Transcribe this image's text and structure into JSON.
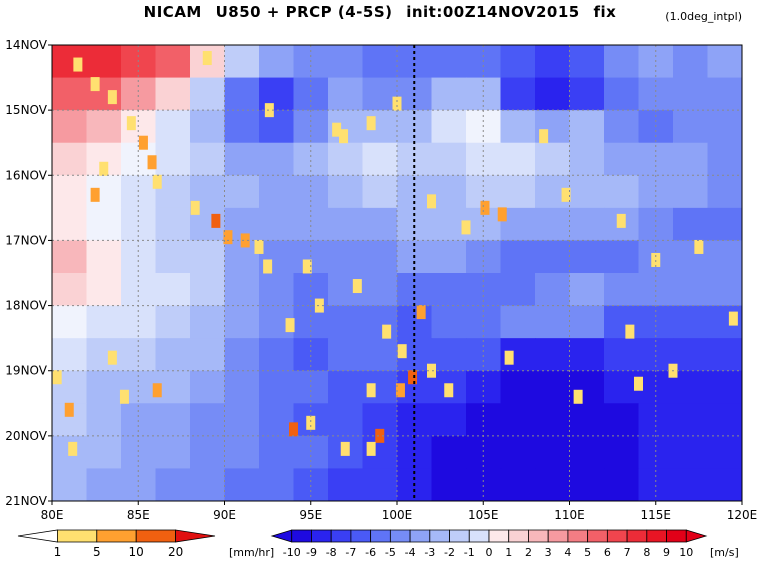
{
  "title": {
    "model": "NICAM",
    "fields": "U850 + PRCP (4-5S)",
    "init": "init:00Z14NOV2015",
    "mode": "fix"
  },
  "note": "(1.0deg_intpl)",
  "chart_data": {
    "type": "heatmap",
    "title": "NICAM  U850 + PRCP (4-5S) init:00Z14NOV2015 fix",
    "x_axis": {
      "label": "",
      "range": [
        80,
        120
      ],
      "ticks": [
        80,
        85,
        90,
        95,
        100,
        105,
        110,
        115,
        120
      ],
      "tick_labels": [
        "80E",
        "85E",
        "90E",
        "95E",
        "100E",
        "105E",
        "110E",
        "115E",
        "120E"
      ]
    },
    "y_axis": {
      "label": "",
      "range_days_from_top": [
        0,
        7
      ],
      "ticks": [
        0,
        1,
        2,
        3,
        4,
        5,
        6,
        7
      ],
      "tick_labels": [
        "14NOV",
        "15NOV",
        "16NOV",
        "17NOV",
        "18NOV",
        "19NOV",
        "20NOV",
        "21NOV"
      ],
      "direction": "time increases downward"
    },
    "grid": true,
    "reference_line": {
      "x": 101,
      "style": "dotted"
    },
    "u850_field": {
      "units": "[m/s]",
      "description": "zonal wind at 850 hPa, shaded",
      "rows": [
        [
          8,
          8,
          7,
          6,
          2,
          -2,
          -4,
          -5,
          -5,
          -6,
          -6,
          -6,
          -6,
          -7,
          -8,
          -7,
          -5,
          -4,
          -5,
          -4
        ],
        [
          6,
          6,
          4,
          2,
          -2,
          -6,
          -8,
          -6,
          -4,
          -5,
          -5,
          -3,
          -3,
          -8,
          -9,
          -8,
          -6,
          -5,
          -5,
          -5
        ],
        [
          4,
          3,
          1,
          -1,
          -3,
          -6,
          -7,
          -5,
          -3,
          -3,
          -3,
          -1,
          0,
          -3,
          -4,
          -3,
          -5,
          -6,
          -5,
          -5
        ],
        [
          2,
          1,
          0,
          -1,
          -2,
          -4,
          -4,
          -3,
          -2,
          -1,
          -2,
          -2,
          -1,
          -1,
          -2,
          -3,
          -4,
          -4,
          -4,
          -5
        ],
        [
          1,
          0,
          -1,
          -2,
          -3,
          -3,
          -4,
          -4,
          -3,
          -2,
          -3,
          -3,
          -2,
          -2,
          -3,
          -3,
          -3,
          -4,
          -4,
          -5
        ],
        [
          1,
          0,
          -1,
          -2,
          -3,
          -4,
          -4,
          -4,
          -4,
          -4,
          -3,
          -3,
          -3,
          -4,
          -4,
          -4,
          -4,
          -5,
          -6,
          -6
        ],
        [
          3,
          1,
          -1,
          -2,
          -2,
          -4,
          -5,
          -5,
          -5,
          -5,
          -4,
          -4,
          -5,
          -6,
          -6,
          -6,
          -6,
          -5,
          -5,
          -5
        ],
        [
          2,
          1,
          -1,
          -1,
          -2,
          -4,
          -5,
          -6,
          -5,
          -5,
          -6,
          -6,
          -6,
          -6,
          -5,
          -4,
          -5,
          -5,
          -5,
          -5
        ],
        [
          0,
          -1,
          -1,
          -2,
          -3,
          -4,
          -5,
          -6,
          -6,
          -6,
          -7,
          -6,
          -6,
          -5,
          -5,
          -5,
          -7,
          -7,
          -7,
          -7
        ],
        [
          -1,
          -2,
          -2,
          -3,
          -3,
          -5,
          -6,
          -7,
          -6,
          -6,
          -7,
          -7,
          -7,
          -9,
          -9,
          -9,
          -8,
          -8,
          -8,
          -8
        ],
        [
          -2,
          -3,
          -3,
          -3,
          -4,
          -5,
          -6,
          -6,
          -7,
          -7,
          -8,
          -8,
          -9,
          -10,
          -10,
          -10,
          -9,
          -9,
          -9,
          -9
        ],
        [
          -2,
          -3,
          -4,
          -4,
          -5,
          -5,
          -6,
          -7,
          -7,
          -8,
          -9,
          -9,
          -10,
          -10,
          -10,
          -10,
          -10,
          -9,
          -9,
          -9
        ],
        [
          -3,
          -3,
          -4,
          -4,
          -5,
          -5,
          -6,
          -6,
          -7,
          -8,
          -9,
          -10,
          -10,
          -10,
          -10,
          -10,
          -10,
          -9,
          -9,
          -9
        ],
        [
          -3,
          -4,
          -4,
          -5,
          -5,
          -6,
          -6,
          -7,
          -8,
          -8,
          -9,
          -10,
          -10,
          -10,
          -10,
          -10,
          -10,
          -9,
          -9,
          -9
        ]
      ]
    },
    "precip_field": {
      "units": "[mm/hr]",
      "description": "precipitation, shaded on top of wind",
      "cells": [
        {
          "lon": 81.5,
          "day": 0.3,
          "v": 2
        },
        {
          "lon": 82.5,
          "day": 0.6,
          "v": 1.5
        },
        {
          "lon": 83.5,
          "day": 0.8,
          "v": 1
        },
        {
          "lon": 84.6,
          "day": 1.2,
          "v": 3
        },
        {
          "lon": 85.3,
          "day": 1.5,
          "v": 6
        },
        {
          "lon": 85.8,
          "day": 1.8,
          "v": 9
        },
        {
          "lon": 86.1,
          "day": 2.1,
          "v": 3
        },
        {
          "lon": 88.3,
          "day": 2.5,
          "v": 2
        },
        {
          "lon": 89.5,
          "day": 2.7,
          "v": 12
        },
        {
          "lon": 90.2,
          "day": 2.95,
          "v": 8
        },
        {
          "lon": 91.2,
          "day": 3.0,
          "v": 6
        },
        {
          "lon": 92.0,
          "day": 3.1,
          "v": 3
        },
        {
          "lon": 92.5,
          "day": 3.4,
          "v": 2
        },
        {
          "lon": 94.8,
          "day": 3.4,
          "v": 2
        },
        {
          "lon": 97.7,
          "day": 3.7,
          "v": 3
        },
        {
          "lon": 102.0,
          "day": 2.4,
          "v": 1.5
        },
        {
          "lon": 104.0,
          "day": 2.8,
          "v": 4
        },
        {
          "lon": 105.1,
          "day": 2.5,
          "v": 8
        },
        {
          "lon": 106.1,
          "day": 2.6,
          "v": 6
        },
        {
          "lon": 101.4,
          "day": 4.1,
          "v": 6
        },
        {
          "lon": 100.3,
          "day": 4.7,
          "v": 2
        },
        {
          "lon": 100.9,
          "day": 5.1,
          "v": 12
        },
        {
          "lon": 100.2,
          "day": 5.3,
          "v": 5
        },
        {
          "lon": 102.0,
          "day": 5.0,
          "v": 1.5
        },
        {
          "lon": 98.5,
          "day": 5.3,
          "v": 2
        },
        {
          "lon": 103.0,
          "day": 5.3,
          "v": 1.5
        },
        {
          "lon": 106.5,
          "day": 4.8,
          "v": 1.5
        },
        {
          "lon": 86.1,
          "day": 5.3,
          "v": 8
        },
        {
          "lon": 84.2,
          "day": 5.4,
          "v": 3
        },
        {
          "lon": 83.5,
          "day": 4.8,
          "v": 2
        },
        {
          "lon": 94.0,
          "day": 5.9,
          "v": 10
        },
        {
          "lon": 95.0,
          "day": 5.8,
          "v": 4
        },
        {
          "lon": 97.0,
          "day": 6.2,
          "v": 2
        },
        {
          "lon": 99.0,
          "day": 6.0,
          "v": 12
        },
        {
          "lon": 98.5,
          "day": 6.2,
          "v": 4
        },
        {
          "lon": 81.0,
          "day": 5.6,
          "v": 6
        },
        {
          "lon": 80.3,
          "day": 5.1,
          "v": 2
        },
        {
          "lon": 81.2,
          "day": 6.2,
          "v": 3
        },
        {
          "lon": 82.5,
          "day": 2.3,
          "v": 5
        },
        {
          "lon": 83.0,
          "day": 1.9,
          "v": 3
        },
        {
          "lon": 89.0,
          "day": 0.2,
          "v": 1
        },
        {
          "lon": 92.6,
          "day": 1.0,
          "v": 1.5
        },
        {
          "lon": 96.5,
          "day": 1.3,
          "v": 1.5
        },
        {
          "lon": 98.5,
          "day": 1.2,
          "v": 2
        },
        {
          "lon": 100.0,
          "day": 0.9,
          "v": 2
        },
        {
          "lon": 109.8,
          "day": 2.3,
          "v": 1.5
        },
        {
          "lon": 113.0,
          "day": 2.7,
          "v": 1.5
        },
        {
          "lon": 108.5,
          "day": 1.4,
          "v": 1.5
        },
        {
          "lon": 117.5,
          "day": 3.1,
          "v": 1.5
        },
        {
          "lon": 115.0,
          "day": 3.3,
          "v": 1.5
        },
        {
          "lon": 113.5,
          "day": 4.4,
          "v": 1.5
        },
        {
          "lon": 119.5,
          "day": 4.2,
          "v": 2
        },
        {
          "lon": 114.0,
          "day": 5.2,
          "v": 1.5
        },
        {
          "lon": 110.5,
          "day": 5.4,
          "v": 1.5
        },
        {
          "lon": 116.0,
          "day": 5.0,
          "v": 1.5
        },
        {
          "lon": 95.5,
          "day": 4.0,
          "v": 1.5
        },
        {
          "lon": 99.4,
          "day": 4.4,
          "v": 1.5
        },
        {
          "lon": 93.8,
          "day": 4.3,
          "v": 1.5
        },
        {
          "lon": 96.9,
          "day": 1.4,
          "v": 2
        }
      ]
    },
    "legend_precip": {
      "values": [
        "1",
        "5",
        "10",
        "20"
      ],
      "units": "[mm/hr]",
      "colors": [
        "#ffffff",
        "#ffe070",
        "#ffa030",
        "#f06010",
        "#e01010"
      ]
    },
    "legend_wind": {
      "values": [
        "-10",
        "-9",
        "-8",
        "-7",
        "-6",
        "-5",
        "-4",
        "-3",
        "-2",
        "-1",
        "0",
        "1",
        "2",
        "3",
        "4",
        "5",
        "6",
        "7",
        "8",
        "9",
        "10"
      ],
      "units": "[m/s]",
      "colors": [
        "#1e0ae0",
        "#2a23ee",
        "#3a3ff4",
        "#4a5af6",
        "#5f74f6",
        "#768cf6",
        "#8ea3f7",
        "#a6b9f8",
        "#bfcdf9",
        "#d8e1fb",
        "#f0f3fd",
        "#fde8ea",
        "#fad2d4",
        "#f8b7bb",
        "#f69aa0",
        "#f47d84",
        "#f26068",
        "#f0454e",
        "#ec2c38",
        "#e81524",
        "#e10018"
      ]
    }
  }
}
